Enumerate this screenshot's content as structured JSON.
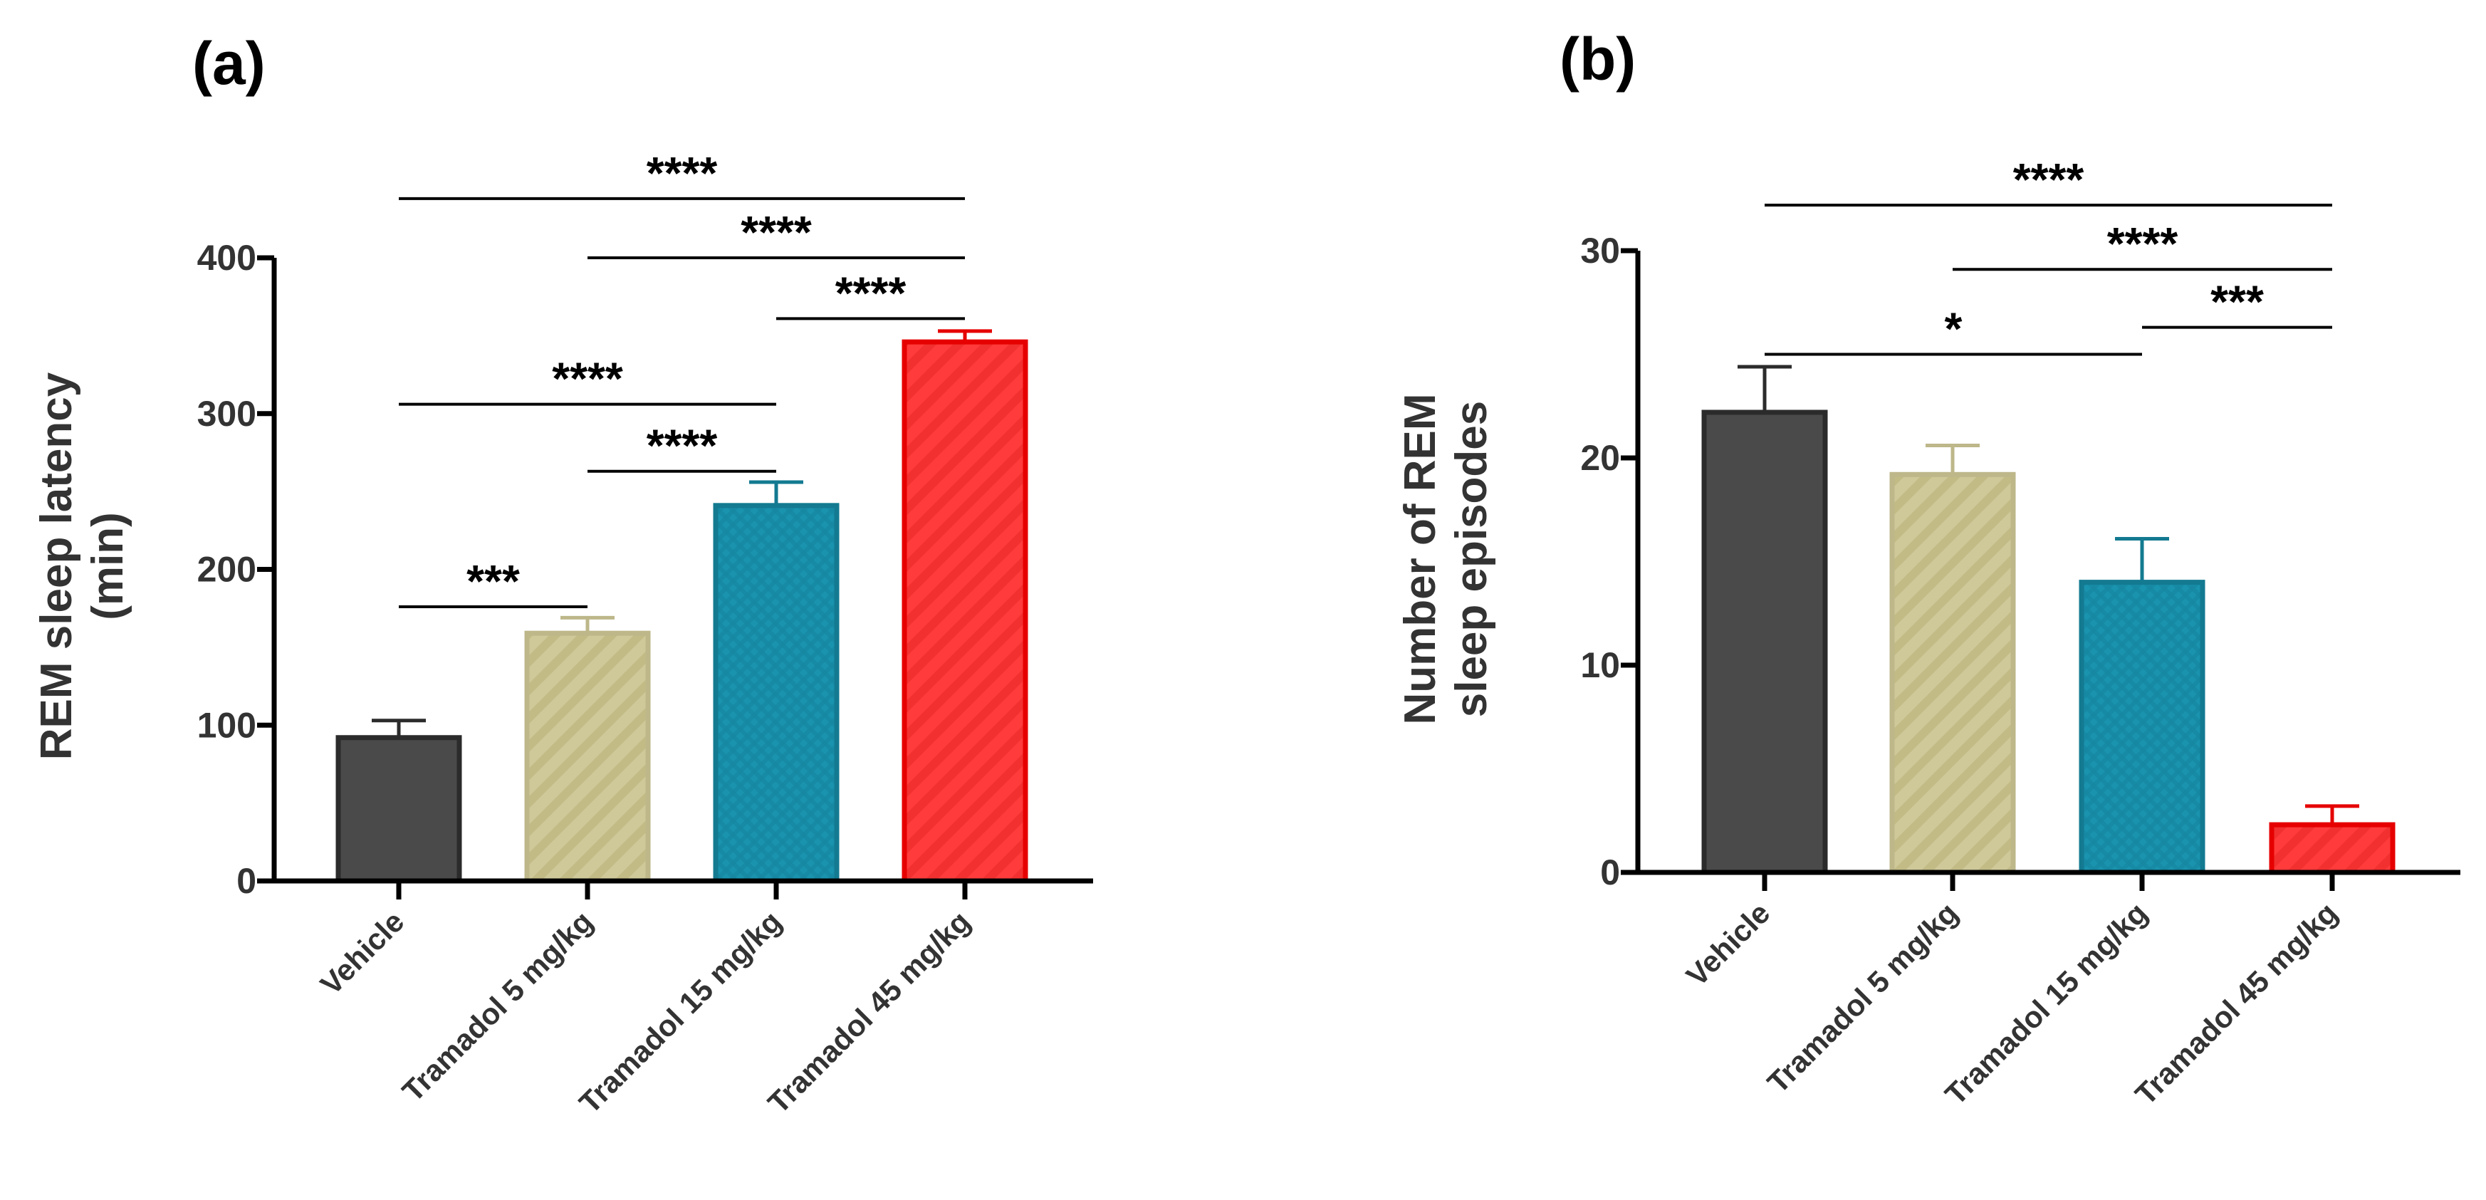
{
  "chart_data": [
    {
      "type": "bar",
      "panel_label": "(a)",
      "title": "",
      "xlabel": "",
      "ylabel_lines": [
        "REM sleep latency",
        "(min)"
      ],
      "categories": [
        "Vehicle",
        "Tramadol 5 mg/kg",
        "Tramadol 15 mg/kg",
        "Tramadol 45 mg/kg"
      ],
      "series": [
        {
          "values": [
            92,
            159,
            241,
            346
          ],
          "error": [
            11,
            10,
            15,
            7
          ]
        }
      ],
      "colors": [
        "#4a4a4a",
        "#cfc99a",
        "#1a93ae",
        "#ff3b3b"
      ],
      "edge_colors": [
        "#2b2b2b",
        "#bdb78a",
        "#137a91",
        "#e60000"
      ],
      "patterns": [
        "solid",
        "diagonal",
        "crosshatch",
        "diagonal"
      ],
      "ylim": [
        0,
        400
      ],
      "yticks": [
        0,
        100,
        200,
        300,
        400
      ],
      "grid": false,
      "legend": "none",
      "comparisons": [
        {
          "from": 0,
          "to": 1,
          "label": "***",
          "y": 176
        },
        {
          "from": 1,
          "to": 2,
          "label": "****",
          "y": 263
        },
        {
          "from": 0,
          "to": 2,
          "label": "****",
          "y": 306
        },
        {
          "from": 2,
          "to": 3,
          "label": "****",
          "y": 361
        },
        {
          "from": 1,
          "to": 3,
          "label": "****",
          "y": 400
        },
        {
          "from": 0,
          "to": 3,
          "label": "****",
          "y": 438
        }
      ]
    },
    {
      "type": "bar",
      "panel_label": "(b)",
      "title": "",
      "xlabel": "",
      "ylabel_lines": [
        "Number of REM",
        "sleep episodes"
      ],
      "categories": [
        "Vehicle",
        "Tramadol 5 mg/kg",
        "Tramadol 15 mg/kg",
        "Tramadol 45 mg/kg"
      ],
      "series": [
        {
          "values": [
            22.2,
            19.2,
            14.0,
            2.3
          ],
          "error": [
            2.2,
            1.4,
            2.1,
            0.9
          ]
        }
      ],
      "colors": [
        "#4a4a4a",
        "#cfc99a",
        "#1a93ae",
        "#ff3b3b"
      ],
      "edge_colors": [
        "#2b2b2b",
        "#bdb78a",
        "#137a91",
        "#e60000"
      ],
      "patterns": [
        "solid",
        "diagonal",
        "crosshatch",
        "diagonal"
      ],
      "ylim": [
        0,
        30
      ],
      "yticks": [
        0,
        10,
        20,
        30
      ],
      "grid": false,
      "legend": "none",
      "comparisons": [
        {
          "from": 0,
          "to": 2,
          "label": "*",
          "y": 25.0
        },
        {
          "from": 2,
          "to": 3,
          "label": "***",
          "y": 26.3
        },
        {
          "from": 1,
          "to": 3,
          "label": "****",
          "y": 29.1
        },
        {
          "from": 0,
          "to": 3,
          "label": "****",
          "y": 32.2
        }
      ]
    }
  ]
}
